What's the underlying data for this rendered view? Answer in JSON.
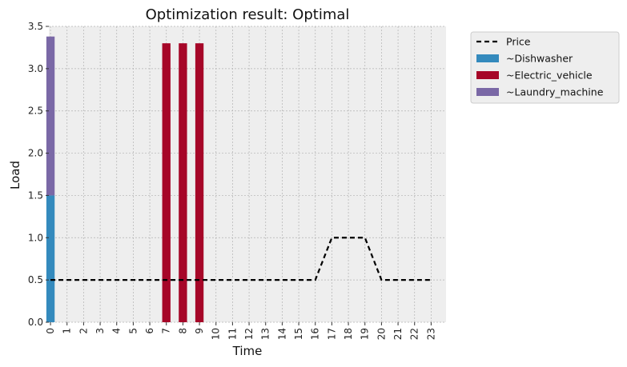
{
  "chart_data": {
    "type": "bar",
    "title": "Optimization result: Optimal",
    "xlabel": "Time",
    "ylabel": "Load",
    "categories": [
      "0",
      "1",
      "2",
      "3",
      "4",
      "5",
      "6",
      "7",
      "8",
      "9",
      "10",
      "11",
      "12",
      "13",
      "14",
      "15",
      "16",
      "17",
      "18",
      "19",
      "20",
      "21",
      "22",
      "23"
    ],
    "ylim": [
      0,
      3.5
    ],
    "yticks": [
      0.0,
      0.5,
      1.0,
      1.5,
      2.0,
      2.5,
      3.0,
      3.5
    ],
    "ytick_labels": [
      "0.0",
      "0.5",
      "1.0",
      "1.5",
      "2.0",
      "2.5",
      "3.0",
      "3.5"
    ],
    "stacked": true,
    "grid": true,
    "legend_position": "outside-right-top",
    "series": [
      {
        "name": "~Dishwasher",
        "color": "#348ABD",
        "values": [
          1.5,
          0,
          0,
          0,
          0,
          0,
          0,
          0,
          0,
          0,
          0,
          0,
          0,
          0,
          0,
          0,
          0,
          0,
          0,
          0,
          0,
          0,
          0,
          0
        ]
      },
      {
        "name": "~Electric_vehicle",
        "color": "#A60628",
        "values": [
          0,
          0,
          0,
          0,
          0,
          0,
          0,
          3.3,
          3.3,
          3.3,
          0,
          0,
          0,
          0,
          0,
          0,
          0,
          0,
          0,
          0,
          0,
          0,
          0,
          0
        ]
      },
      {
        "name": "~Laundry_machine",
        "color": "#7A68A6",
        "values": [
          1.88,
          0,
          0,
          0,
          0,
          0,
          0,
          0,
          0,
          0,
          0,
          0,
          0,
          0,
          0,
          0,
          0,
          0,
          0,
          0,
          0,
          0,
          0,
          0
        ]
      }
    ],
    "lines": [
      {
        "name": "Price",
        "color": "#000000",
        "style": "dashed",
        "values": [
          0.5,
          0.5,
          0.5,
          0.5,
          0.5,
          0.5,
          0.5,
          0.5,
          0.5,
          0.5,
          0.5,
          0.5,
          0.5,
          0.5,
          0.5,
          0.5,
          0.5,
          1.0,
          1.0,
          1.0,
          0.5,
          0.5,
          0.5,
          0.5
        ]
      }
    ]
  }
}
